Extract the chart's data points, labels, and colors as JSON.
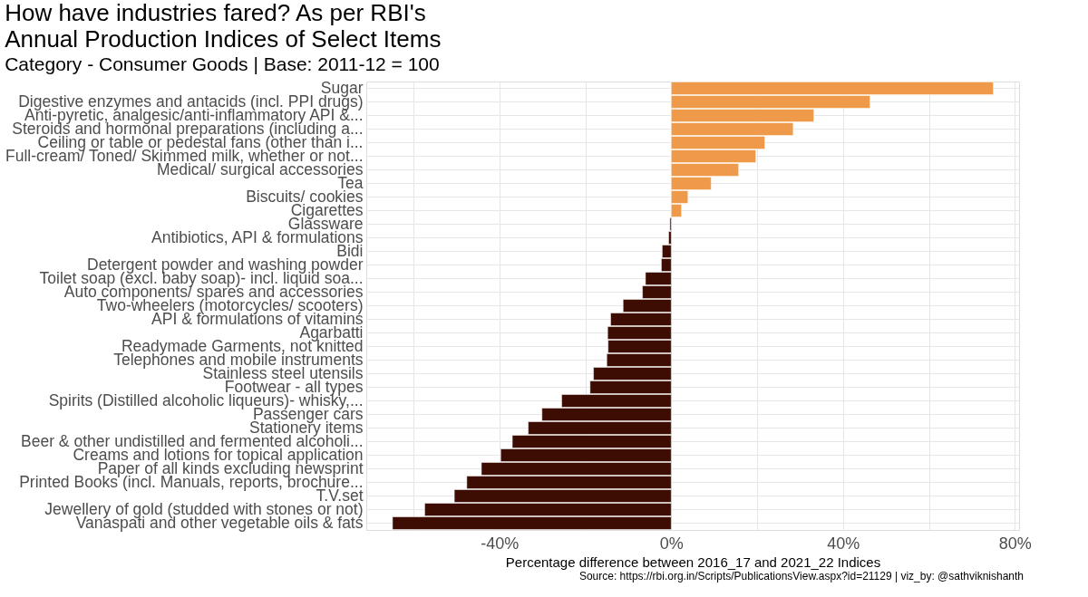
{
  "chart_data": {
    "type": "bar",
    "orientation": "horizontal",
    "title": "How have industries fared? As per RBI's\nAnnual Production Indices of Select Items",
    "subtitle": "Category - Consumer Goods | Base: 2011-12 = 100",
    "xlabel": "Percentage difference between 2016_17 and 2021_22 Indices",
    "annotations": [
      "Source: https://rbi.org.in/Scripts/PublicationsView.aspx?id=21129 | viz_by: @sathviknishanth"
    ],
    "categories": [
      "Sugar",
      "Digestive enzymes and antacids (incl. PPI drugs)",
      "Anti-pyretic, analgesic/anti-inflammatory API &...",
      "Steroids and hormonal preparations (including a...",
      "Ceiling or table or pedestal fans (other than i...",
      "Full-cream/ Toned/ Skimmed milk, whether or not...",
      "Medical/ surgical accessories",
      "Tea",
      "Biscuits/ cookies",
      "Cigarettes",
      "Glassware",
      "Antibiotics, API & formulations",
      "Bidi",
      "Detergent powder and washing powder",
      "Toilet soap (excl. baby soap)- incl. liquid soa...",
      "Auto components/ spares and accessories",
      "Two-wheelers (motorcycles/ scooters)",
      "API & formulations of vitamins",
      "Agarbatti",
      "Readymade Garments, not knitted",
      "Telephones and mobile instruments",
      "Stainless steel utensils",
      "Footwear - all types",
      "Spirits (Distilled alcoholic liqueurs)- whisky,...",
      "Passenger cars",
      "Stationery items",
      "Beer & other undistilled and fermented alcoholi...",
      "Creams and lotions for topical application",
      "Paper of all kinds excluding newsprint",
      "Printed Books (incl. Manuals, reports, brochure...",
      "T.V.set",
      "Jewellery of gold (studded with stones or not)",
      "Vanaspati and other vegetable oils & fats"
    ],
    "values": [
      75.0,
      46.3,
      33.2,
      28.4,
      21.8,
      19.7,
      15.7,
      9.3,
      3.9,
      2.4,
      -0.3,
      -0.6,
      -2.1,
      -2.3,
      -6.0,
      -6.7,
      -11.2,
      -14.1,
      -14.8,
      -14.7,
      -15.0,
      -18.1,
      -18.9,
      -25.5,
      -30.1,
      -33.3,
      -37.0,
      -39.7,
      -44.2,
      -47.6,
      -50.5,
      -57.4,
      -64.9
    ],
    "colors": [
      "#ee9a4a",
      "#ee9a4a",
      "#ee9a4a",
      "#ee9a4a",
      "#ee9a4a",
      "#ee9a4a",
      "#ee9a4a",
      "#ee9a4a",
      "#ee9a4a",
      "#ee9a4a",
      "#3d0c02",
      "#3d0c02",
      "#3d0c02",
      "#3d0c02",
      "#3d0c02",
      "#3d0c02",
      "#3d0c02",
      "#3d0c02",
      "#3d0c02",
      "#3d0c02",
      "#3d0c02",
      "#3d0c02",
      "#3d0c02",
      "#3d0c02",
      "#3d0c02",
      "#3d0c02",
      "#3d0c02",
      "#3d0c02",
      "#3d0c02",
      "#3d0c02",
      "#3d0c02",
      "#3d0c02",
      "#3d0c02"
    ],
    "xlim": [
      -71,
      81
    ],
    "xticks": [
      {
        "value": -60,
        "label": null
      },
      {
        "value": -40,
        "label": "-40%"
      },
      {
        "value": -20,
        "label": null
      },
      {
        "value": 0,
        "label": "0%"
      },
      {
        "value": 20,
        "label": null
      },
      {
        "value": 40,
        "label": "40%"
      },
      {
        "value": 60,
        "label": null
      },
      {
        "value": 80,
        "label": "80%"
      }
    ],
    "grid": true
  }
}
